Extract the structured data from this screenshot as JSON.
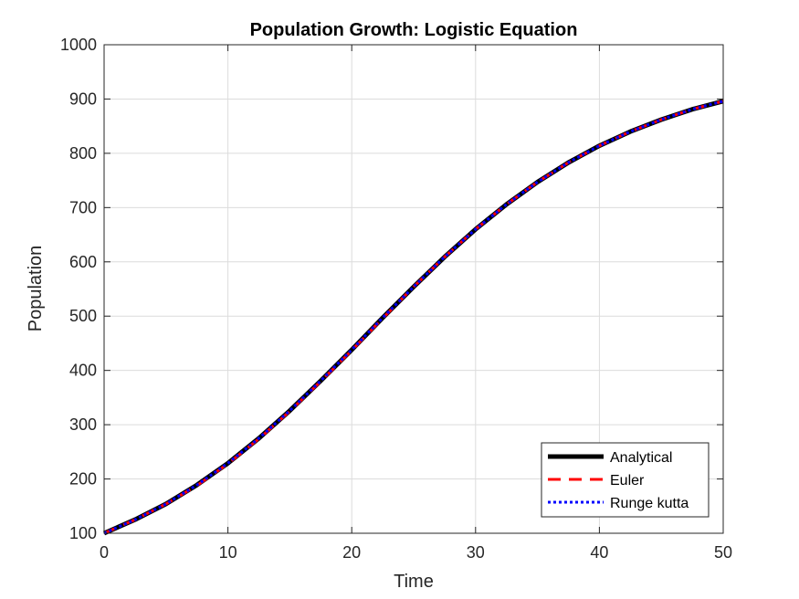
{
  "chart_data": {
    "type": "line",
    "title": "Population Growth: Logistic Equation",
    "xlabel": "Time",
    "ylabel": "Population",
    "xlim": [
      0,
      50
    ],
    "ylim": [
      100,
      1000
    ],
    "xticks": [
      0,
      10,
      20,
      30,
      40,
      50
    ],
    "yticks": [
      100,
      200,
      300,
      400,
      500,
      600,
      700,
      800,
      900,
      1000
    ],
    "grid": true,
    "legend_position": "bottom-right",
    "x": [
      0,
      2.5,
      5,
      7.5,
      10,
      12.5,
      15,
      17.5,
      20,
      22.5,
      25,
      27.5,
      30,
      32.5,
      35,
      37.5,
      40,
      42.5,
      45,
      47.5,
      50
    ],
    "series": [
      {
        "name": "Analytical",
        "color": "#000000",
        "style": "solid",
        "values": [
          100,
          125,
          154,
          189,
          229,
          275,
          326,
          381,
          438,
          497,
          554,
          609,
          660,
          706,
          747,
          783,
          814,
          840,
          862,
          881,
          896
        ]
      },
      {
        "name": "Euler",
        "color": "#ff0000",
        "style": "dashed",
        "values": [
          100,
          125,
          154,
          188,
          228,
          274,
          325,
          380,
          437,
          496,
          554,
          609,
          660,
          706,
          747,
          783,
          814,
          840,
          862,
          881,
          896
        ]
      },
      {
        "name": "Runge kutta",
        "color": "#0000ff",
        "style": "dotted",
        "values": [
          100,
          125,
          154,
          189,
          229,
          275,
          326,
          381,
          438,
          497,
          554,
          609,
          660,
          706,
          747,
          783,
          814,
          840,
          862,
          881,
          896
        ]
      }
    ]
  }
}
